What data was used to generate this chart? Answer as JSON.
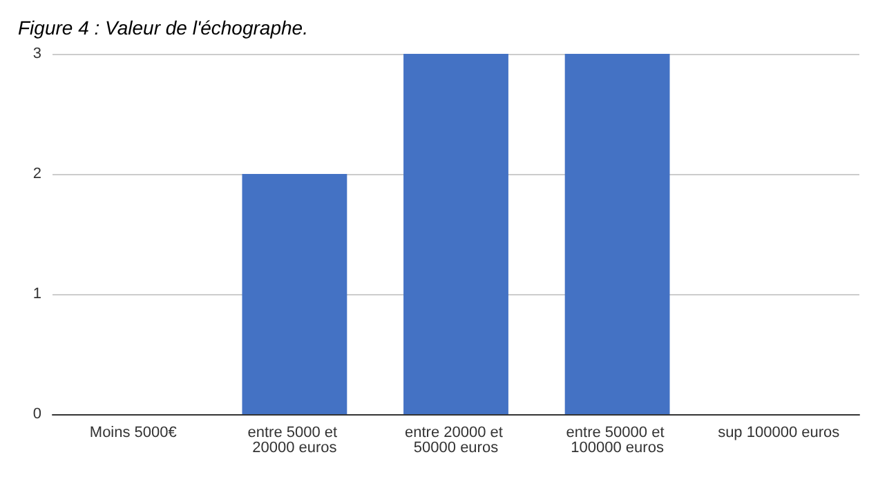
{
  "chart_data": {
    "type": "bar",
    "title": "Figure 4 : Valeur de l'échographe.",
    "categories": [
      "Moins 5000€",
      "entre 5000 et 20000 euros",
      "entre 20000 et 50000 euros",
      "entre 50000 et 100000 euros",
      "sup 100000 euros"
    ],
    "values": [
      0,
      2,
      3,
      3,
      0
    ],
    "color": "#4472c4",
    "ylim": [
      0,
      3
    ],
    "yticks": [
      0,
      1,
      2,
      3
    ],
    "grid": "y"
  }
}
